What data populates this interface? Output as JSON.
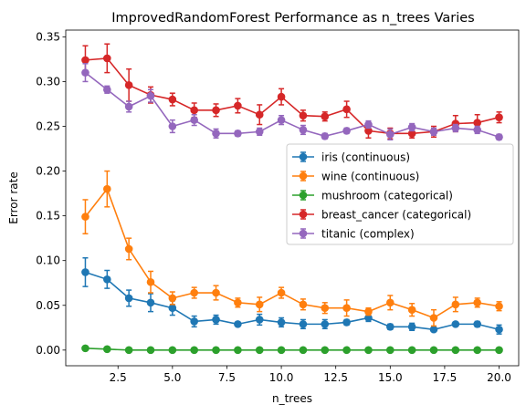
{
  "chart_data": {
    "type": "line",
    "title": "ImprovedRandomForest Performance as n_trees Varies",
    "xlabel": "n_trees",
    "ylabel": "Error rate",
    "xlim": [
      0.1,
      20.9
    ],
    "ylim": [
      -0.0175,
      0.3575
    ],
    "x_ticks": [
      "2.5",
      "5.0",
      "7.5",
      "10.0",
      "12.5",
      "15.0",
      "17.5",
      "20.0"
    ],
    "y_ticks": [
      "0.00",
      "0.05",
      "0.10",
      "0.15",
      "0.20",
      "0.25",
      "0.30",
      "0.35"
    ],
    "grid": false,
    "legend_position": "center-right",
    "x": [
      1,
      2,
      3,
      4,
      5,
      6,
      7,
      8,
      9,
      10,
      11,
      12,
      13,
      14,
      15,
      16,
      17,
      18,
      19,
      20
    ],
    "series": [
      {
        "name": "iris (continuous)",
        "color": "#1f77b4",
        "values": [
          0.087,
          0.079,
          0.058,
          0.053,
          0.047,
          0.032,
          0.034,
          0.029,
          0.034,
          0.031,
          0.029,
          0.029,
          0.031,
          0.036,
          0.026,
          0.026,
          0.023,
          0.029,
          0.029,
          0.023
        ],
        "errors": [
          0.016,
          0.01,
          0.009,
          0.01,
          0.008,
          0.006,
          0.005,
          0.002,
          0.006,
          0.005,
          0.005,
          0.005,
          0.003,
          0.004,
          0.003,
          0.004,
          0.002,
          0.002,
          0.003,
          0.005
        ]
      },
      {
        "name": "wine (continuous)",
        "color": "#ff7f0e",
        "values": [
          0.149,
          0.18,
          0.113,
          0.076,
          0.058,
          0.064,
          0.064,
          0.053,
          0.051,
          0.064,
          0.051,
          0.047,
          0.047,
          0.043,
          0.053,
          0.045,
          0.036,
          0.051,
          0.053,
          0.049
        ],
        "errors": [
          0.019,
          0.02,
          0.012,
          0.012,
          0.007,
          0.006,
          0.008,
          0.005,
          0.008,
          0.006,
          0.006,
          0.006,
          0.009,
          0.004,
          0.008,
          0.007,
          0.009,
          0.008,
          0.005,
          0.005
        ]
      },
      {
        "name": "mushroom (categorical)",
        "color": "#2ca02c",
        "values": [
          0.002,
          0.001,
          0.0,
          0.0,
          0.0,
          0.0,
          0.0,
          0.0,
          0.0,
          0.0,
          0.0,
          0.0,
          0.0,
          0.0,
          0.0,
          0.0,
          0.0,
          0.0,
          0.0,
          0.0
        ],
        "errors": [
          0.001,
          0.001,
          0.0,
          0.0,
          0.0,
          0.0,
          0.0,
          0.0,
          0.0,
          0.0,
          0.0,
          0.0,
          0.0,
          0.0,
          0.0,
          0.0,
          0.0,
          0.0,
          0.0,
          0.0
        ]
      },
      {
        "name": "breast_cancer (categorical)",
        "color": "#d62728",
        "values": [
          0.324,
          0.326,
          0.296,
          0.285,
          0.28,
          0.268,
          0.268,
          0.273,
          0.263,
          0.283,
          0.262,
          0.261,
          0.269,
          0.245,
          0.242,
          0.242,
          0.244,
          0.253,
          0.254,
          0.26
        ],
        "errors": [
          0.016,
          0.016,
          0.018,
          0.009,
          0.007,
          0.008,
          0.007,
          0.008,
          0.011,
          0.009,
          0.006,
          0.005,
          0.009,
          0.008,
          0.006,
          0.005,
          0.006,
          0.009,
          0.009,
          0.006
        ]
      },
      {
        "name": "titanic (complex)",
        "color": "#9467bd",
        "values": [
          0.31,
          0.291,
          0.272,
          0.284,
          0.25,
          0.257,
          0.242,
          0.242,
          0.244,
          0.257,
          0.246,
          0.239,
          0.245,
          0.252,
          0.241,
          0.249,
          0.244,
          0.248,
          0.246,
          0.238
        ],
        "errors": [
          0.01,
          0.004,
          0.006,
          0.007,
          0.007,
          0.006,
          0.005,
          0.003,
          0.004,
          0.005,
          0.005,
          0.003,
          0.003,
          0.004,
          0.006,
          0.004,
          0.004,
          0.004,
          0.004,
          0.003
        ]
      }
    ]
  }
}
